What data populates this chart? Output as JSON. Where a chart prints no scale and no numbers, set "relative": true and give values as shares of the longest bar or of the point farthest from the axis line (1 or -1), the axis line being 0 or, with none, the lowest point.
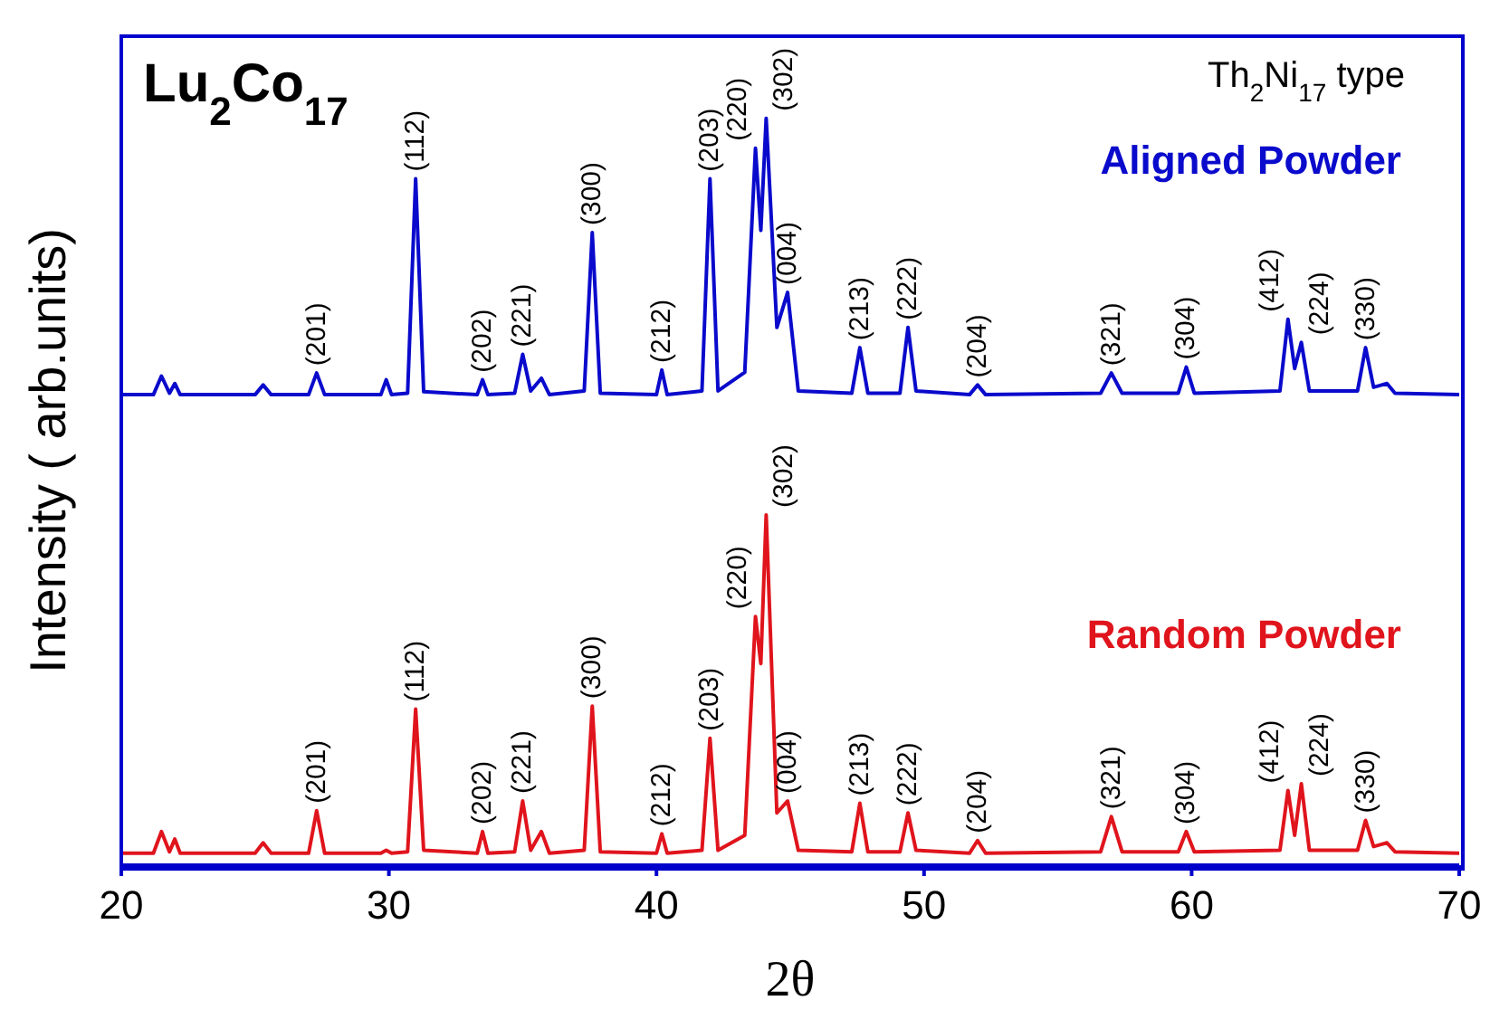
{
  "chart_data": {
    "type": "line",
    "title": "Lu$_{2}$Co$_{17}$",
    "xlabel": "2θ",
    "ylabel": "Intensity ( arb.units)",
    "relative": true,
    "xlim": [
      20,
      70
    ],
    "xticks": [
      20,
      30,
      40,
      50,
      60,
      70
    ],
    "x": [
      20,
      21.2,
      21.5,
      21.8,
      22.0,
      22.2,
      25.0,
      25.3,
      25.6,
      27.0,
      27.3,
      27.6,
      29.7,
      29.9,
      30.1,
      30.7,
      31.0,
      31.3,
      33.3,
      33.5,
      33.7,
      34.7,
      35.0,
      35.3,
      35.7,
      36.0,
      37.3,
      37.6,
      37.9,
      40.0,
      40.2,
      40.4,
      41.7,
      42.0,
      42.3,
      43.3,
      43.7,
      43.9,
      44.1,
      44.5,
      44.9,
      45.3,
      47.3,
      47.6,
      47.9,
      49.1,
      49.4,
      49.7,
      51.7,
      52.0,
      52.3,
      56.6,
      57.0,
      57.4,
      59.5,
      59.8,
      60.1,
      63.3,
      63.6,
      63.85,
      64.1,
      64.4,
      66.2,
      66.5,
      66.8,
      67.3,
      67.6,
      70
    ],
    "series": [
      {
        "name": "Aligned Powder",
        "color": "#0a0acc",
        "values": [
          0.63,
          0.63,
          0.655,
          0.632,
          0.645,
          0.63,
          0.63,
          0.643,
          0.63,
          0.63,
          0.659,
          0.63,
          0.63,
          0.65,
          0.63,
          0.632,
          0.919,
          0.634,
          0.63,
          0.65,
          0.63,
          0.632,
          0.684,
          0.635,
          0.652,
          0.63,
          0.635,
          0.847,
          0.632,
          0.63,
          0.663,
          0.63,
          0.635,
          0.919,
          0.635,
          0.66,
          0.96,
          0.85,
          1,
          0.72,
          0.767,
          0.635,
          0.632,
          0.693,
          0.632,
          0.632,
          0.72,
          0.635,
          0.63,
          0.643,
          0.63,
          0.632,
          0.659,
          0.632,
          0.632,
          0.667,
          0.632,
          0.635,
          0.731,
          0.665,
          0.7,
          0.635,
          0.635,
          0.693,
          0.64,
          0.645,
          0.632,
          0.63
        ]
      },
      {
        "name": "Random Powder",
        "color": "#e0141c",
        "values": [
          0.016,
          0.016,
          0.045,
          0.018,
          0.035,
          0.016,
          0.016,
          0.03,
          0.016,
          0.016,
          0.073,
          0.016,
          0.016,
          0.02,
          0.016,
          0.018,
          0.209,
          0.02,
          0.016,
          0.045,
          0.016,
          0.018,
          0.086,
          0.02,
          0.045,
          0.016,
          0.02,
          0.213,
          0.018,
          0.016,
          0.042,
          0.016,
          0.02,
          0.17,
          0.02,
          0.04,
          0.333,
          0.27,
          0.469,
          0.07,
          0.086,
          0.02,
          0.018,
          0.083,
          0.018,
          0.018,
          0.07,
          0.02,
          0.016,
          0.033,
          0.016,
          0.018,
          0.065,
          0.018,
          0.018,
          0.045,
          0.018,
          0.02,
          0.1,
          0.04,
          0.109,
          0.02,
          0.02,
          0.06,
          0.025,
          0.03,
          0.018,
          0.016
        ]
      }
    ],
    "annotations": [
      "Th$_{2}$Ni$_{17}$ type",
      {
        "text": "(201)",
        "x": 27.3,
        "y": 0.659
      },
      {
        "text": "(112)",
        "x": 31.0,
        "y": 0.919
      },
      {
        "text": "(202)",
        "x": 33.5,
        "y": 0.65
      },
      {
        "text": "(221)",
        "x": 35.0,
        "y": 0.684
      },
      {
        "text": "(300)",
        "x": 37.6,
        "y": 0.847
      },
      {
        "text": "(212)",
        "x": 40.2,
        "y": 0.663
      },
      {
        "text": "(203)",
        "x": 42.0,
        "y": 0.919
      },
      {
        "text": "(220)",
        "x": 43.7,
        "y": 0.96
      },
      {
        "text": "(302)",
        "x": 44.1,
        "y": 1
      },
      {
        "text": "(004)",
        "x": 44.9,
        "y": 0.767
      },
      {
        "text": "(213)",
        "x": 47.6,
        "y": 0.693
      },
      {
        "text": "(222)",
        "x": 49.4,
        "y": 0.72
      },
      {
        "text": "(204)",
        "x": 52.0,
        "y": 0.643
      },
      {
        "text": "(321)",
        "x": 57.0,
        "y": 0.659
      },
      {
        "text": "(304)",
        "x": 59.8,
        "y": 0.667
      },
      {
        "text": "(412)",
        "x": 63.6,
        "y": 0.731
      },
      {
        "text": "(224)",
        "x": 64.1,
        "y": 0.7
      },
      {
        "text": "(330)",
        "x": 66.5,
        "y": 0.693
      },
      {
        "text": "(201)",
        "x": 27.3,
        "y": 0.073
      },
      {
        "text": "(112)",
        "x": 31.0,
        "y": 0.209
      },
      {
        "text": "(202)",
        "x": 33.5,
        "y": 0.045
      },
      {
        "text": "(221)",
        "x": 35.0,
        "y": 0.086
      },
      {
        "text": "(300)",
        "x": 37.6,
        "y": 0.213
      },
      {
        "text": "(212)",
        "x": 40.2,
        "y": 0.042
      },
      {
        "text": "(203)",
        "x": 42.0,
        "y": 0.17
      },
      {
        "text": "(220)",
        "x": 43.7,
        "y": 0.333
      },
      {
        "text": "(302)",
        "x": 44.1,
        "y": 0.469
      },
      {
        "text": "(004)",
        "x": 44.9,
        "y": 0.086
      },
      {
        "text": "(213)",
        "x": 47.6,
        "y": 0.083
      },
      {
        "text": "(222)",
        "x": 49.4,
        "y": 0.07
      },
      {
        "text": "(204)",
        "x": 52.0,
        "y": 0.033
      },
      {
        "text": "(321)",
        "x": 57.0,
        "y": 0.065
      },
      {
        "text": "(304)",
        "x": 59.8,
        "y": 0.045
      },
      {
        "text": "(412)",
        "x": 63.6,
        "y": 0.1
      },
      {
        "text": "(224)",
        "x": 64.1,
        "y": 0.109
      },
      {
        "text": "(330)",
        "x": 66.5,
        "y": 0.06
      }
    ]
  }
}
